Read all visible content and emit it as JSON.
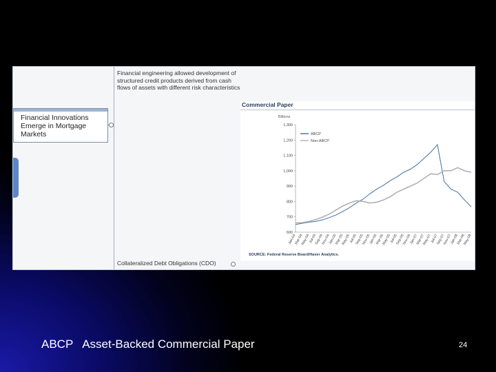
{
  "slide": {
    "caption": "ABCP   Asset-Backed Commercial Paper",
    "page_number": "24"
  },
  "mindmap": {
    "node_label": "Financial Innovations Emerge in Mortgage Markets",
    "note_top": "Financial engineering allowed development of structured credit products derived from cash flows of assets with different risk characteristics",
    "note_bottom": "Collateralized Debt Obligations (CDO)"
  },
  "chart_data": {
    "type": "line",
    "title": "Commercial Paper",
    "ylabel": "Billions",
    "ylim": [
      600,
      1300
    ],
    "yticks": [
      "1,300",
      "1,200",
      "1,100",
      "1,000",
      "900",
      "800",
      "700",
      "600"
    ],
    "x": [
      "Jan-04",
      "Mar-04",
      "May-04",
      "Jul-04",
      "Sep-04",
      "Nov-04",
      "Jan-05",
      "Mar-05",
      "May-05",
      "Jul-05",
      "Sep-05",
      "Nov-05",
      "Jan-06",
      "Mar-06",
      "May-06",
      "Jul-06",
      "Sep-06",
      "Nov-06",
      "Jan-07",
      "Mar-07",
      "May-07",
      "Jul-07",
      "Sep-07",
      "Nov-07",
      "Jan-08",
      "Mar-08",
      "May-08"
    ],
    "series": [
      {
        "name": "ABCP",
        "color": "#3f6fa6",
        "values": [
          650,
          658,
          665,
          670,
          680,
          695,
          712,
          735,
          760,
          790,
          815,
          850,
          880,
          905,
          935,
          960,
          990,
          1010,
          1040,
          1080,
          1120,
          1170,
          930,
          880,
          860,
          810,
          765
        ]
      },
      {
        "name": "Non-ABCP",
        "color": "#b0b0b0",
        "values": [
          660,
          662,
          670,
          682,
          698,
          718,
          745,
          770,
          790,
          805,
          800,
          790,
          795,
          810,
          830,
          860,
          880,
          900,
          920,
          950,
          980,
          975,
          1000,
          1000,
          1020,
          1000,
          990
        ]
      }
    ],
    "legend_position": "top-left",
    "grid": false,
    "source": "SOURCE: Federal Reserve Board/Haver Analytics."
  }
}
